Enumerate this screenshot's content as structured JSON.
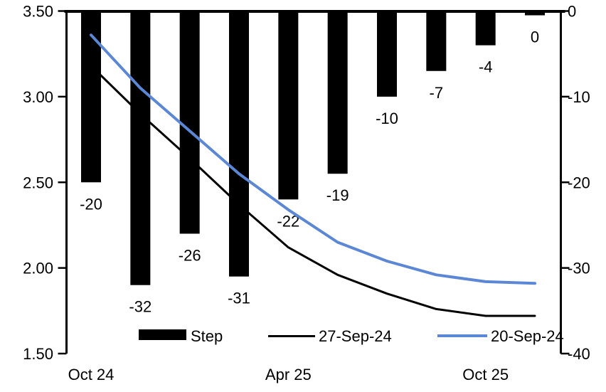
{
  "chart_data": {
    "type": "combo-bar-line",
    "title": "",
    "x_count": 10,
    "x_tick_labels": [
      {
        "index": 0,
        "label": "Oct 24"
      },
      {
        "index": 4,
        "label": "Apr 25"
      },
      {
        "index": 8,
        "label": "Oct 25"
      }
    ],
    "left_axis": {
      "min": 1.5,
      "max": 3.5,
      "tick_labels": [
        "3.50",
        "3.00",
        "2.50",
        "2.00",
        "1.50"
      ],
      "tick_values": [
        3.5,
        3.0,
        2.5,
        2.0,
        1.5
      ]
    },
    "right_axis": {
      "min": -40,
      "max": 0,
      "tick_labels": [
        "0",
        "-10",
        "-20",
        "-30",
        "-40"
      ],
      "tick_values": [
        0,
        -10,
        -20,
        -30,
        -40
      ]
    },
    "series": [
      {
        "name": "Step",
        "type": "bar",
        "axis": "right",
        "color": "#000000",
        "values": [
          -20,
          -32,
          -26,
          -31,
          -22,
          -19,
          -10,
          -7,
          -4,
          0
        ],
        "data_labels": [
          "-20",
          "-32",
          "-26",
          "-31",
          "-22",
          "-19",
          "-10",
          "-7",
          "-4",
          "0"
        ]
      },
      {
        "name": "27-Sep-24",
        "type": "line",
        "axis": "left",
        "color": "#000000",
        "values": [
          3.18,
          2.9,
          2.64,
          2.37,
          2.12,
          1.96,
          1.85,
          1.76,
          1.72,
          1.72
        ]
      },
      {
        "name": "20-Sep-24",
        "type": "line",
        "axis": "left",
        "color": "#5b87d5",
        "values": [
          3.36,
          3.05,
          2.8,
          2.55,
          2.34,
          2.15,
          2.04,
          1.96,
          1.92,
          1.91
        ]
      }
    ],
    "legend": [
      {
        "label": "Step",
        "swatch": "bar",
        "color": "#000000"
      },
      {
        "label": "27-Sep-24",
        "swatch": "line",
        "color": "#000000"
      },
      {
        "label": "20-Sep-24",
        "swatch": "line",
        "color": "#5b87d5"
      }
    ],
    "grid": "off",
    "legend_position": "bottom-inside"
  }
}
